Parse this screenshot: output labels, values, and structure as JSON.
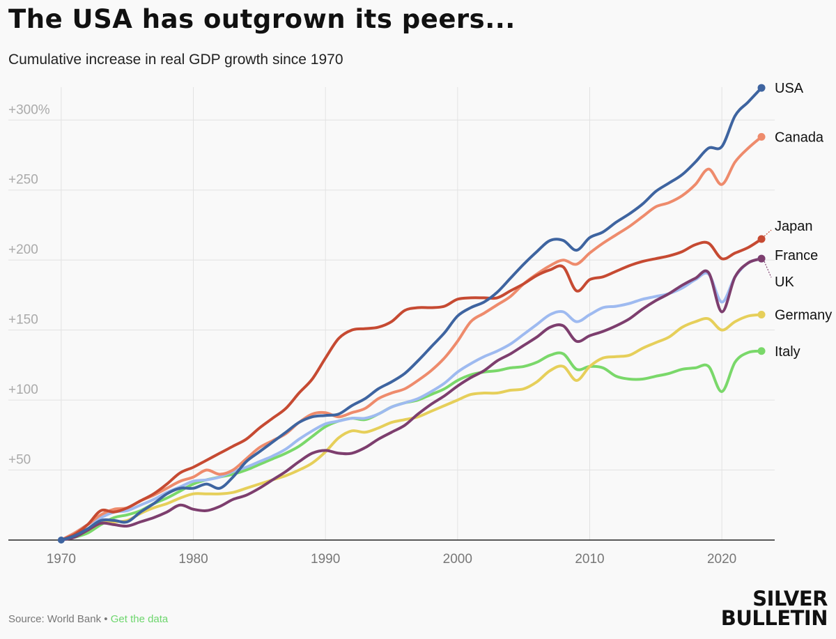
{
  "title": "The USA has outgrown its peers...",
  "subtitle": "Cumulative increase in real GDP growth since 1970",
  "footer": {
    "source": "Source: World Bank",
    "separator": " • ",
    "link": "Get the data"
  },
  "logo": {
    "line1": "SILVER",
    "line2": "BULLETIN"
  },
  "chart_data": {
    "type": "line",
    "xlim": [
      1966,
      2024
    ],
    "ylim": [
      0,
      330
    ],
    "x_ticks": [
      1970,
      1980,
      1990,
      2000,
      2010,
      2020
    ],
    "x_tick_labels": [
      "1970",
      "1980",
      "1990",
      "2000",
      "2010",
      "2020"
    ],
    "y_ticks": [
      50,
      100,
      150,
      200,
      250,
      300
    ],
    "y_tick_labels": [
      "+50",
      "+100",
      "+150",
      "+200",
      "+250",
      "+300%"
    ],
    "grid": true,
    "x": [
      1970,
      1971,
      1972,
      1973,
      1974,
      1975,
      1976,
      1977,
      1978,
      1979,
      1980,
      1981,
      1982,
      1983,
      1984,
      1985,
      1986,
      1987,
      1988,
      1989,
      1990,
      1991,
      1992,
      1993,
      1994,
      1995,
      1996,
      1997,
      1998,
      1999,
      2000,
      2001,
      2002,
      2003,
      2004,
      2005,
      2006,
      2007,
      2008,
      2009,
      2010,
      2011,
      2012,
      2013,
      2014,
      2015,
      2016,
      2017,
      2018,
      2019,
      2020,
      2021,
      2022,
      2023
    ],
    "series": [
      {
        "name": "USA",
        "color": "#3e64a0",
        "values": [
          0,
          3,
          8,
          14,
          14,
          13,
          20,
          26,
          33,
          37,
          37,
          40,
          37,
          45,
          56,
          63,
          70,
          77,
          84,
          88,
          89,
          90,
          96,
          101,
          108,
          113,
          119,
          128,
          138,
          148,
          160,
          166,
          170,
          177,
          187,
          197,
          206,
          214,
          214,
          207,
          216,
          220,
          227,
          233,
          240,
          249,
          255,
          261,
          270,
          280,
          281,
          303,
          313,
          323
        ]
      },
      {
        "name": "Canada",
        "color": "#ee8b6c",
        "values": [
          0,
          5,
          11,
          18,
          22,
          23,
          28,
          32,
          37,
          42,
          45,
          50,
          47,
          50,
          58,
          66,
          71,
          76,
          84,
          90,
          91,
          88,
          91,
          94,
          101,
          105,
          108,
          114,
          121,
          130,
          142,
          156,
          162,
          168,
          174,
          183,
          190,
          196,
          200,
          197,
          205,
          212,
          218,
          224,
          231,
          238,
          241,
          246,
          254,
          265,
          254,
          270,
          280,
          288
        ]
      },
      {
        "name": "Japan",
        "color": "#c64a32",
        "values": [
          0,
          4,
          11,
          21,
          20,
          23,
          28,
          33,
          40,
          48,
          52,
          57,
          62,
          67,
          72,
          80,
          87,
          94,
          105,
          115,
          130,
          144,
          150,
          151,
          152,
          156,
          164,
          166,
          166,
          167,
          172,
          173,
          173,
          173,
          178,
          183,
          189,
          193,
          195,
          178,
          186,
          188,
          192,
          196,
          199,
          201,
          203,
          206,
          211,
          212,
          201,
          205,
          209,
          215
        ]
      },
      {
        "name": "France",
        "color": "#9ebaf0",
        "values": [
          0,
          5,
          11,
          16,
          20,
          21,
          25,
          29,
          34,
          38,
          42,
          43,
          45,
          49,
          52,
          56,
          60,
          65,
          72,
          78,
          83,
          85,
          87,
          87,
          90,
          95,
          98,
          101,
          106,
          112,
          120,
          126,
          131,
          135,
          140,
          147,
          154,
          161,
          163,
          156,
          161,
          166,
          167,
          169,
          172,
          174,
          176,
          180,
          186,
          190,
          170,
          188,
          198,
          201
        ]
      },
      {
        "name": "UK",
        "color": "#7d3e6e",
        "values": [
          0,
          2,
          7,
          12,
          11,
          10,
          13,
          16,
          20,
          25,
          22,
          21,
          24,
          29,
          32,
          37,
          43,
          49,
          56,
          62,
          64,
          62,
          62,
          66,
          72,
          77,
          82,
          90,
          97,
          103,
          110,
          116,
          121,
          128,
          133,
          139,
          145,
          152,
          153,
          142,
          146,
          149,
          153,
          158,
          165,
          171,
          176,
          182,
          187,
          191,
          163,
          188,
          198,
          201
        ]
      },
      {
        "name": "Germany",
        "color": "#e6cf5a",
        "values": [
          0,
          3,
          7,
          12,
          13,
          14,
          19,
          23,
          26,
          30,
          33,
          33,
          33,
          34,
          37,
          40,
          43,
          46,
          50,
          55,
          63,
          73,
          78,
          77,
          80,
          84,
          86,
          88,
          92,
          96,
          100,
          104,
          105,
          105,
          107,
          108,
          113,
          121,
          124,
          114,
          124,
          130,
          131,
          132,
          137,
          141,
          145,
          152,
          156,
          158,
          150,
          156,
          160,
          161
        ]
      },
      {
        "name": "Italy",
        "color": "#7ad86a",
        "values": [
          0,
          2,
          5,
          11,
          16,
          18,
          21,
          26,
          30,
          35,
          40,
          43,
          45,
          47,
          50,
          54,
          58,
          62,
          67,
          74,
          81,
          85,
          87,
          86,
          90,
          95,
          98,
          100,
          104,
          108,
          114,
          118,
          120,
          121,
          123,
          124,
          127,
          132,
          133,
          122,
          124,
          123,
          117,
          115,
          115,
          117,
          119,
          122,
          123,
          124,
          106,
          127,
          134,
          135
        ]
      }
    ]
  }
}
